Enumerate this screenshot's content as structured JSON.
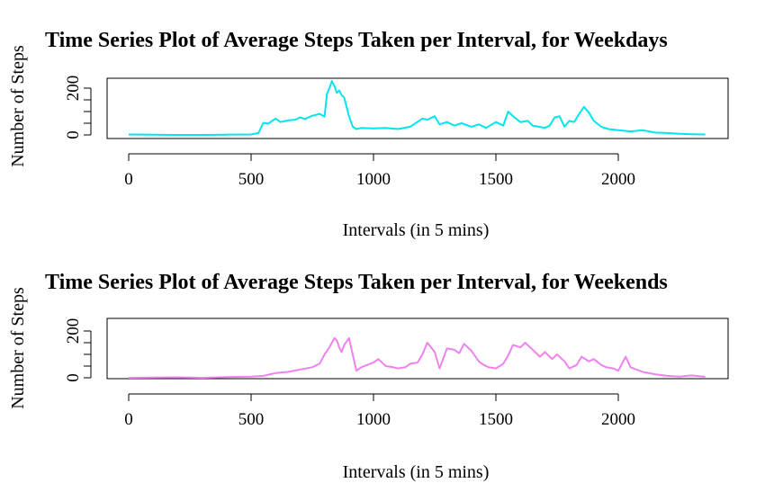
{
  "chart_data": [
    {
      "type": "line",
      "title": "Time Series Plot of Average Steps Taken per Interval, for Weekdays",
      "xlabel": "Intervals (in 5 mins)",
      "ylabel": "Number of Steps",
      "xlim": [
        0,
        2355
      ],
      "ylim": [
        0,
        230
      ],
      "x_ticks": [
        0,
        500,
        1000,
        1500,
        2000
      ],
      "y_ticks": [
        0,
        200
      ],
      "y_minor_ticks": [
        50,
        100,
        150
      ],
      "grid": false,
      "series": [
        {
          "color": "#00E5EE",
          "x": [
            0,
            100,
            200,
            300,
            400,
            500,
            530,
            550,
            570,
            600,
            620,
            650,
            680,
            700,
            720,
            750,
            780,
            800,
            810,
            820,
            830,
            840,
            850,
            860,
            870,
            880,
            890,
            900,
            915,
            930,
            950,
            1000,
            1050,
            1100,
            1150,
            1200,
            1220,
            1250,
            1270,
            1300,
            1330,
            1360,
            1400,
            1430,
            1460,
            1500,
            1530,
            1550,
            1570,
            1600,
            1630,
            1650,
            1700,
            1720,
            1740,
            1760,
            1780,
            1800,
            1820,
            1840,
            1860,
            1880,
            1900,
            1930,
            1960,
            2000,
            2050,
            2100,
            2150,
            2200,
            2250,
            2300,
            2355
          ],
          "y": [
            2,
            1,
            0,
            0,
            1,
            2,
            8,
            52,
            48,
            70,
            55,
            62,
            65,
            75,
            68,
            82,
            90,
            78,
            175,
            200,
            230,
            210,
            180,
            190,
            170,
            160,
            120,
            80,
            35,
            25,
            30,
            28,
            30,
            25,
            35,
            70,
            65,
            80,
            45,
            55,
            40,
            50,
            35,
            45,
            30,
            55,
            40,
            100,
            80,
            55,
            60,
            40,
            30,
            40,
            75,
            80,
            35,
            60,
            55,
            90,
            120,
            95,
            60,
            35,
            25,
            20,
            15,
            20,
            10,
            8,
            5,
            3,
            2
          ]
        }
      ]
    },
    {
      "type": "line",
      "title": "Time Series Plot of Average Steps Taken per Interval, for Weekends",
      "xlabel": "Intervals (in 5 mins)",
      "ylabel": "Number of Steps",
      "xlim": [
        0,
        2355
      ],
      "ylim": [
        0,
        230
      ],
      "x_ticks": [
        0,
        500,
        1000,
        1500,
        2000
      ],
      "y_ticks": [
        0,
        200
      ],
      "y_minor_ticks": [
        50,
        100,
        150
      ],
      "grid": false,
      "series": [
        {
          "color": "#EE82EE",
          "x": [
            0,
            100,
            200,
            300,
            400,
            500,
            550,
            600,
            650,
            700,
            750,
            780,
            800,
            820,
            840,
            850,
            860,
            870,
            880,
            900,
            915,
            930,
            950,
            975,
            1000,
            1020,
            1050,
            1080,
            1100,
            1130,
            1150,
            1180,
            1200,
            1220,
            1250,
            1270,
            1300,
            1330,
            1350,
            1370,
            1400,
            1430,
            1450,
            1470,
            1500,
            1530,
            1550,
            1570,
            1600,
            1620,
            1650,
            1680,
            1700,
            1730,
            1750,
            1780,
            1800,
            1830,
            1850,
            1880,
            1900,
            1930,
            1950,
            1980,
            2000,
            2030,
            2050,
            2100,
            2150,
            2200,
            2250,
            2300,
            2355
          ],
          "y": [
            0,
            1,
            2,
            0,
            3,
            5,
            8,
            20,
            25,
            35,
            45,
            60,
            100,
            130,
            170,
            160,
            130,
            110,
            140,
            170,
            100,
            30,
            45,
            55,
            65,
            80,
            50,
            45,
            40,
            45,
            60,
            65,
            100,
            150,
            110,
            40,
            125,
            120,
            105,
            145,
            115,
            70,
            55,
            45,
            40,
            60,
            95,
            140,
            130,
            150,
            120,
            90,
            110,
            80,
            100,
            70,
            40,
            55,
            90,
            70,
            80,
            55,
            45,
            40,
            30,
            90,
            45,
            25,
            15,
            8,
            5,
            10,
            4
          ]
        }
      ]
    }
  ]
}
